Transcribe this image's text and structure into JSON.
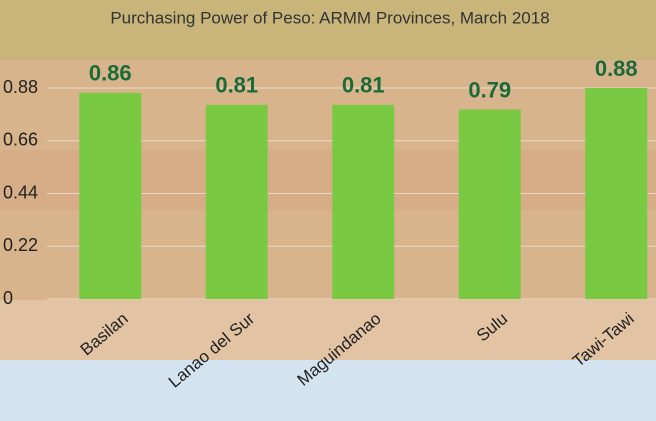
{
  "chart_data": {
    "type": "bar",
    "title": "Purchasing Power of Peso:  ARMM Provinces, March 2018",
    "categories": [
      "Basilan",
      "Lanao del Sur",
      "Maguindanao",
      "Sulu",
      "Tawi-Tawi"
    ],
    "values": [
      0.86,
      0.81,
      0.81,
      0.79,
      0.88
    ],
    "color": "#7ac943",
    "ylim": [
      0,
      0.88
    ],
    "yticks": [
      0,
      0.22,
      0.44,
      0.66,
      0.88
    ],
    "grid": true
  }
}
